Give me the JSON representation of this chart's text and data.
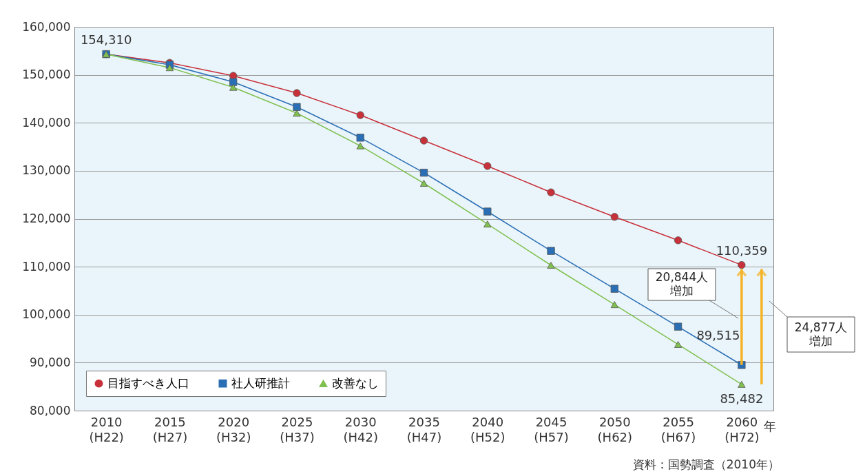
{
  "chart_data": {
    "type": "line",
    "categories": [
      "2010\n(H22)",
      "2015\n(H27)",
      "2020\n(H32)",
      "2025\n(H37)",
      "2030\n(H42)",
      "2035\n(H47)",
      "2040\n(H52)",
      "2045\n(H57)",
      "2050\n(H62)",
      "2055\n(H67)",
      "2060\n(H72)"
    ],
    "xlabel": "年",
    "series": [
      {
        "name": "目指すべき人口",
        "color": "#c8313a",
        "marker": "circle",
        "values": [
          154310,
          152500,
          149800,
          146200,
          141600,
          136300,
          131000,
          125500,
          120400,
          115500,
          110359
        ],
        "value_labels": [
          "154,310",
          null,
          null,
          null,
          null,
          null,
          null,
          null,
          null,
          null,
          "110,359"
        ]
      },
      {
        "name": "社人研推計",
        "color": "#2a6fb5",
        "marker": "square",
        "values": [
          154310,
          152100,
          148500,
          143300,
          136900,
          129600,
          121500,
          113300,
          105400,
          97500,
          89515
        ],
        "value_labels": [
          null,
          null,
          null,
          null,
          null,
          null,
          null,
          null,
          null,
          null,
          "89,515"
        ]
      },
      {
        "name": "改善なし",
        "color": "#80c050",
        "marker": "triangle",
        "values": [
          154310,
          151500,
          147400,
          142000,
          135200,
          127400,
          118900,
          110300,
          102100,
          93800,
          85482
        ],
        "value_labels": [
          null,
          null,
          null,
          null,
          null,
          null,
          null,
          null,
          null,
          null,
          "85,482"
        ]
      }
    ],
    "ylim": [
      80000,
      160000
    ],
    "yticks": [
      {
        "value": 80000,
        "label": "80,000"
      },
      {
        "value": 90000,
        "label": "90,000"
      },
      {
        "value": 100000,
        "label": "100,000"
      },
      {
        "value": 110000,
        "label": "110,000"
      },
      {
        "value": 120000,
        "label": "120,000"
      },
      {
        "value": 130000,
        "label": "130,000"
      },
      {
        "value": 140000,
        "label": "140,000"
      },
      {
        "value": 150000,
        "label": "150,000"
      },
      {
        "value": 160000,
        "label": "160,000"
      }
    ],
    "grid": "y",
    "legend": "bottom left",
    "line_style": "solid",
    "annotations": [
      "20,844人増加",
      "24,877人増加",
      "資料：国勢調査（2010年）"
    ]
  }
}
